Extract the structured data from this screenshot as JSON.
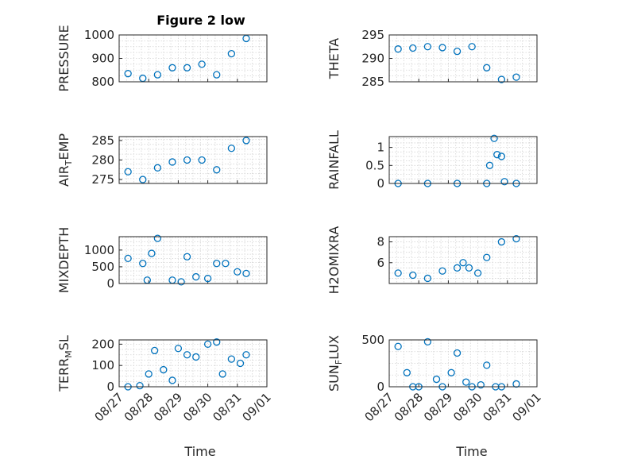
{
  "figure": {
    "title": "Figure 2 low"
  },
  "chart_data": {
    "type": "scatter",
    "x_axis": {
      "label": "Time",
      "range": [
        "08/27",
        "09/01"
      ],
      "tick_labels": [
        "08/27",
        "08/28",
        "08/29",
        "08/30",
        "08/31",
        "09/01"
      ]
    },
    "grid": true,
    "marker": "circle",
    "color": "#0072BD",
    "panels": [
      {
        "ylabel": "PRESSURE",
        "ylim": [
          800,
          1000
        ],
        "yticks": [
          800,
          900,
          1000
        ],
        "ytick_labels": [
          "800",
          "900",
          "1000"
        ],
        "x": [
          0.3,
          0.8,
          1.3,
          1.8,
          2.3,
          2.8,
          3.3,
          3.8,
          4.3
        ],
        "y": [
          835,
          815,
          830,
          860,
          860,
          875,
          830,
          920,
          985
        ]
      },
      {
        "ylabel": "THETA",
        "ylim": [
          285,
          295
        ],
        "yticks": [
          285,
          290,
          295
        ],
        "ytick_labels": [
          "285",
          "290",
          "295"
        ],
        "x": [
          0.3,
          0.8,
          1.3,
          1.8,
          2.3,
          2.8,
          3.3,
          3.8,
          4.3
        ],
        "y": [
          292,
          292.2,
          292.5,
          292.3,
          291.5,
          292.5,
          288,
          285.5,
          286
        ]
      },
      {
        "ylabel": "AIR_TEMP",
        "ylim": [
          274,
          286
        ],
        "yticks": [
          275,
          280,
          285
        ],
        "ytick_labels": [
          "275",
          "280",
          "285"
        ],
        "x": [
          0.3,
          0.8,
          1.3,
          1.8,
          2.3,
          2.8,
          3.3,
          3.8,
          4.3
        ],
        "y": [
          277,
          275,
          278,
          279.5,
          280,
          280,
          277.5,
          283,
          285
        ]
      },
      {
        "ylabel": "RAINFALL",
        "ylim": [
          0,
          1.3
        ],
        "yticks": [
          0,
          0.5,
          1
        ],
        "ytick_labels": [
          "0",
          "0.5",
          "1"
        ],
        "x": [
          0.3,
          1.3,
          2.3,
          3.3,
          3.4,
          3.55,
          3.65,
          3.8,
          3.9,
          4.3
        ],
        "y": [
          0,
          0,
          0,
          0,
          0.5,
          1.25,
          0.8,
          0.75,
          0.05,
          0
        ]
      },
      {
        "ylabel": "MIXDEPTH",
        "ylim": [
          0,
          1400
        ],
        "yticks": [
          0,
          500,
          1000
        ],
        "ytick_labels": [
          "0",
          "500",
          "1000"
        ],
        "x": [
          0.3,
          0.8,
          0.95,
          1.1,
          1.3,
          1.8,
          2.1,
          2.3,
          2.6,
          3.0,
          3.3,
          3.6,
          4.0,
          4.3
        ],
        "y": [
          750,
          600,
          100,
          900,
          1350,
          100,
          50,
          800,
          200,
          150,
          600,
          600,
          350,
          300
        ]
      },
      {
        "ylabel": "H2OMIXRA",
        "ylim": [
          4,
          8.5
        ],
        "yticks": [
          6,
          8
        ],
        "ytick_labels": [
          "6",
          "8"
        ],
        "x": [
          0.3,
          0.8,
          1.3,
          1.8,
          2.3,
          2.5,
          2.7,
          3.0,
          3.3,
          3.8,
          4.3
        ],
        "y": [
          5,
          4.8,
          4.5,
          5.2,
          5.5,
          6,
          5.5,
          5,
          6.5,
          8,
          8.3
        ]
      },
      {
        "ylabel": "TERR_MSL",
        "ylim": [
          0,
          220
        ],
        "yticks": [
          0,
          100,
          200
        ],
        "ytick_labels": [
          "0",
          "100",
          "200"
        ],
        "x": [
          0.3,
          0.7,
          1.0,
          1.2,
          1.5,
          1.8,
          2.0,
          2.3,
          2.6,
          3.0,
          3.3,
          3.5,
          3.8,
          4.1,
          4.3
        ],
        "y": [
          0,
          5,
          60,
          170,
          80,
          30,
          180,
          150,
          140,
          200,
          210,
          60,
          130,
          110,
          150
        ]
      },
      {
        "ylabel": "SUN_FLUX",
        "ylim": [
          0,
          500
        ],
        "yticks": [
          0,
          500
        ],
        "ytick_labels": [
          "0",
          "500"
        ],
        "x": [
          0.3,
          0.6,
          0.8,
          1.0,
          1.3,
          1.6,
          1.8,
          2.1,
          2.3,
          2.6,
          2.8,
          3.1,
          3.3,
          3.6,
          3.8,
          4.3
        ],
        "y": [
          430,
          150,
          0,
          0,
          480,
          80,
          0,
          150,
          360,
          50,
          0,
          20,
          230,
          0,
          0,
          30
        ]
      }
    ]
  }
}
